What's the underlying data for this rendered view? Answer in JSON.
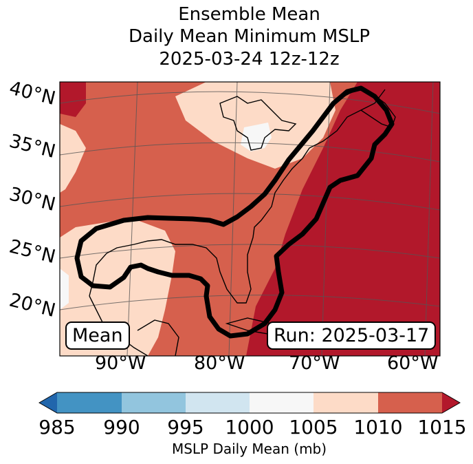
{
  "title": {
    "line1": "Ensemble Mean",
    "line2": "Daily Mean Minimum MSLP",
    "line3": "2025-03-24 12z-12z"
  },
  "map": {
    "lat_labels": [
      "40°N",
      "35°N",
      "30°N",
      "25°N",
      "20°N"
    ],
    "lon_labels": [
      "90°W",
      "80°W",
      "70°W",
      "60°W"
    ],
    "mean_box": "Mean",
    "run_box": "Run: 2025-03-17",
    "region": "Eastern United States, Gulf of Mexico and western Atlantic"
  },
  "colorbar": {
    "label": "MSLP Daily Mean (mb)",
    "ticks": [
      "985",
      "990",
      "995",
      "1000",
      "1005",
      "1010",
      "1015"
    ],
    "colors": {
      "below": "#2166ac",
      "985-990": "#4393c3",
      "990-995": "#92c5de",
      "995-1000": "#d1e5f0",
      "1000-1005": "#f7f7f7",
      "1005-1010": "#fddbc7",
      "1010-1015": "#d6604d",
      "above": "#b2182b"
    }
  },
  "colors": {
    "land_outline": "#000000",
    "contour": "#000000",
    "grid": "#555555"
  }
}
